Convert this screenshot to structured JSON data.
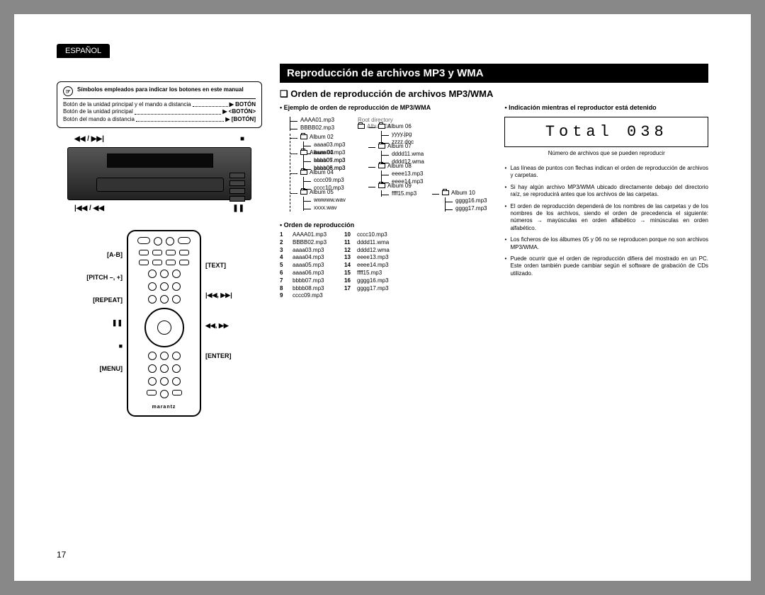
{
  "language_tab": "ESPAÑOL",
  "symbol_box": {
    "heading": "Símbolos empleados para indicar los botones en este manual",
    "rows": [
      {
        "left": "Botón de la unidad principal y el mando a distancia",
        "right": "BOTÓN"
      },
      {
        "left": "Botón de la unidad principal",
        "right": "<BOTÓN>"
      },
      {
        "left": "Botón del mando a distancia",
        "right": "[BOTÓN]"
      }
    ]
  },
  "device_labels": {
    "top_left": "◀◀ / ▶▶|",
    "top_right": "■",
    "bot_left": "|◀◀ / ◀◀",
    "bot_right": "❚❚"
  },
  "remote_labels": {
    "left": [
      "[A-B]",
      "[PITCH –, +]",
      "[REPEAT]",
      "❚❚",
      "■",
      "[MENU]"
    ],
    "right": [
      "[TEXT]",
      "|◀◀, ▶▶|",
      "◀◀, ▶▶",
      "[ENTER]"
    ]
  },
  "remote_brand": "marantz",
  "title": "Reproducción de archivos MP3 y WMA",
  "section": "Orden de reproducción de archivos MP3/WMA",
  "example_head": "• Ejemplo de orden de reproducción de MP3/WMA",
  "root_label": "Root directory",
  "tree": {
    "root_files": [
      "AAAA01.mp3",
      "BBBB02.mp3"
    ],
    "album01": "Album 01",
    "branches": [
      {
        "name": "Album 02",
        "files": [
          "aaaa03.mp3",
          "aaaa04.mp3",
          "aaaa05.mp3",
          "aaaa06.mp3"
        ],
        "sub": {
          "name": "Album 06",
          "files": [
            "yyyy.jpg",
            "zzzz.doc"
          ]
        }
      },
      {
        "name": "Album 03",
        "files": [
          "bbbb07.mp3",
          "bbbb08.mp3"
        ],
        "sub": {
          "name": "Album 07",
          "files": [
            "dddd11.wma",
            "dddd12.wma"
          ]
        }
      },
      {
        "name": "Album 04",
        "files": [
          "cccc09.mp3",
          "cccc10.mp3"
        ],
        "sub": {
          "name": "Album 08",
          "files": [
            "eeee13.mp3",
            "eeee14.mp3"
          ]
        }
      },
      {
        "name": "Album 05",
        "files": [
          "wwwww.wav",
          "xxxx.wav"
        ],
        "sub": {
          "name": "Album 09",
          "files": [
            "ffff15.mp3"
          ],
          "sub2": {
            "name": "Album 10",
            "files": [
              "gggg16.mp3",
              "gggg17.mp3"
            ]
          }
        }
      }
    ]
  },
  "order_head": "• Orden de reproducción",
  "order_list_a": [
    {
      "n": "1",
      "f": "AAAA01.mp3"
    },
    {
      "n": "2",
      "f": "BBBB02.mp3"
    },
    {
      "n": "3",
      "f": "aaaa03.mp3"
    },
    {
      "n": "4",
      "f": "aaaa04.mp3"
    },
    {
      "n": "5",
      "f": "aaaa05.mp3"
    },
    {
      "n": "6",
      "f": "aaaa06.mp3"
    },
    {
      "n": "7",
      "f": "bbbb07.mp3"
    },
    {
      "n": "8",
      "f": "bbbb08.mp3"
    },
    {
      "n": "9",
      "f": "cccc09.mp3"
    }
  ],
  "order_list_b": [
    {
      "n": "10",
      "f": "cccc10.mp3"
    },
    {
      "n": "11",
      "f": "dddd11.wma"
    },
    {
      "n": "12",
      "f": "dddd12.wma"
    },
    {
      "n": "13",
      "f": "eeee13.mp3"
    },
    {
      "n": "14",
      "f": "eeee14.mp3"
    },
    {
      "n": "15",
      "f": "ffff15.mp3"
    },
    {
      "n": "16",
      "f": "gggg16.mp3"
    },
    {
      "n": "17",
      "f": "gggg17.mp3"
    }
  ],
  "indication_head": "• Indicación mientras el reproductor está detenido",
  "lcd_text": "Total  038",
  "lcd_note": "Número de archivos que se pueden reproducir",
  "bullets": [
    "Las líneas de puntos con flechas indican el orden de reproducción de archivos y carpetas.",
    "Si hay algún archivo MP3/WMA ubicado directamente debajo del directorio raíz, se reproducirá antes que los archivos de las carpetas.",
    "El orden de reproducción dependerá de los nombres de las carpetas y de los nombres de los archivos, siendo el orden de precedencia el siguiente: números → mayúsculas en orden alfabético → minúsculas en orden alfabético.",
    "Los ficheros de los álbumes 05 y 06 no se reproducen porque no son archivos MP3/WMA.",
    "Puede ocurrir que el orden de reproducción difiera del mostrado en un PC. Este orden también puede cambiar según el software de grabación de CDs utilizado."
  ],
  "page_number": "17"
}
